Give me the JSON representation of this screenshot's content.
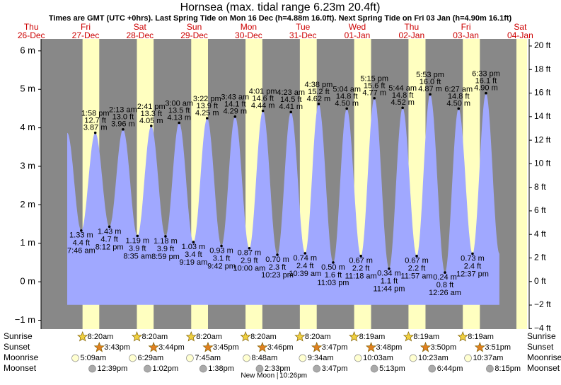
{
  "chart_data": {
    "type": "area",
    "title": "Hornsea (max. tidal range 6.23m 20.4ft)",
    "subtitle": "Times are GMT (UTC +0hrs). Last Spring Tide on Mon 16 Dec (h=4.88m 16.0ft). Next Spring Tide on Fri 03 Jan (h=4.90m 16.1ft)",
    "color": "#a0a8ff",
    "night_color": "#888888",
    "day_color": "#ffffc0",
    "ylim": [
      -1.23,
      6.31
    ],
    "yticks": [
      {
        "value": 6,
        "label": "6 m"
      },
      {
        "value": 5,
        "label": "5 m"
      },
      {
        "value": 4,
        "label": "4 m"
      },
      {
        "value": 3,
        "label": "3 m"
      },
      {
        "value": 2,
        "label": "2 m"
      },
      {
        "value": 1,
        "label": "1 m"
      },
      {
        "value": 0,
        "label": "0 m"
      },
      {
        "value": -1,
        "label": "−1 m"
      }
    ],
    "y2lim": [
      -4.04,
      20.6
    ],
    "y2ticks": [
      {
        "value": 20,
        "label": "20 ft"
      },
      {
        "value": 18,
        "label": "18 ft"
      },
      {
        "value": 16,
        "label": "16 ft"
      },
      {
        "value": 14,
        "label": "14 ft"
      },
      {
        "value": 12,
        "label": "12 ft"
      },
      {
        "value": 10,
        "label": "10 ft"
      },
      {
        "value": 8,
        "label": "8 ft"
      },
      {
        "value": 6,
        "label": "6 ft"
      },
      {
        "value": 4,
        "label": "4 ft"
      },
      {
        "value": 2,
        "label": "2 ft"
      },
      {
        "value": 0,
        "label": "0 ft"
      },
      {
        "value": -2,
        "label": "−2 ft"
      },
      {
        "value": -4,
        "label": "−4 ft"
      }
    ],
    "rows": [
      "Sunrise",
      "Sunset",
      "Moonrise",
      "Moonset"
    ],
    "days": [
      {
        "dow": "Thu",
        "date": "26-Dec"
      },
      {
        "dow": "Fri",
        "date": "27-Dec",
        "times": [
          "7:46 am",
          "1:58 pm",
          "8:12 pm"
        ],
        "values": [
          1.33,
          3.87,
          1.43
        ],
        "value_labels": [
          "1.33 m",
          "3.87 m",
          "1.43 m"
        ],
        "ft_labels": [
          "4.4 ft",
          "12.7 ft",
          "4.7 ft"
        ],
        "sunrise": "8:20am",
        "sunset": "3:43pm",
        "moonrise": "5:09am",
        "moonset": "12:39pm"
      },
      {
        "dow": "Sat",
        "date": "28-Dec",
        "times": [
          "2:13 am",
          "8:35 am",
          "2:41 pm",
          "8:59 pm"
        ],
        "values": [
          3.96,
          1.19,
          4.05,
          1.18
        ],
        "value_labels": [
          "3.96 m",
          "1.19 m",
          "4.05 m",
          "1.18 m"
        ],
        "ft_labels": [
          "13.0 ft",
          "3.9 ft",
          "13.3 ft",
          "3.9 ft"
        ],
        "sunrise": "8:20am",
        "sunset": "3:44pm",
        "moonrise": "6:29am",
        "moonset": "1:02pm"
      },
      {
        "dow": "Sun",
        "date": "29-Dec",
        "times": [
          "3:00 am",
          "9:19 am",
          "3:22 pm",
          "9:42 pm"
        ],
        "values": [
          4.13,
          1.03,
          4.25,
          0.93
        ],
        "value_labels": [
          "4.13 m",
          "1.03 m",
          "4.25 m",
          "0.93 m"
        ],
        "ft_labels": [
          "13.5 ft",
          "3.4 ft",
          "13.9 ft",
          "3.1 ft"
        ],
        "sunrise": "8:20am",
        "sunset": "3:45pm",
        "moonrise": "7:45am",
        "moonset": "1:38pm"
      },
      {
        "dow": "Mon",
        "date": "30-Dec",
        "times": [
          "3:43 am",
          "10:00 am",
          "4:01 pm",
          "10:23 pm"
        ],
        "values": [
          4.29,
          0.87,
          4.44,
          0.7
        ],
        "value_labels": [
          "4.29 m",
          "0.87 m",
          "4.44 m",
          "0.70 m"
        ],
        "ft_labels": [
          "14.1 ft",
          "2.9 ft",
          "14.6 ft",
          "2.3 ft"
        ],
        "sunrise": "8:20am",
        "sunset": "3:46pm",
        "moonrise": "8:48am",
        "moonset": "2:33pm",
        "moon_phase": "New Moon",
        "moon_phase_time": "10:26pm"
      },
      {
        "dow": "Tue",
        "date": "31-Dec",
        "times": [
          "4:23 am",
          "10:39 am",
          "4:38 pm",
          "11:03 pm"
        ],
        "values": [
          4.41,
          0.74,
          4.62,
          0.5
        ],
        "value_labels": [
          "4.41 m",
          "0.74 m",
          "4.62 m",
          "0.50 m"
        ],
        "ft_labels": [
          "14.5 ft",
          "2.4 ft",
          "15.2 ft",
          "1.6 ft"
        ],
        "sunrise": "8:20am",
        "sunset": "3:47pm",
        "moonrise": "9:34am",
        "moonset": "3:47pm"
      },
      {
        "dow": "Wed",
        "date": "01-Jan",
        "times": [
          "5:04 am",
          "11:18 am",
          "5:15 pm",
          "11:44 pm"
        ],
        "values": [
          4.5,
          0.67,
          4.77,
          0.34
        ],
        "value_labels": [
          "4.50 m",
          "0.67 m",
          "4.77 m",
          "0.34 m"
        ],
        "ft_labels": [
          "14.8 ft",
          "2.2 ft",
          "15.6 ft",
          "1.1 ft"
        ],
        "sunrise": "8:19am",
        "sunset": "3:48pm",
        "moonrise": "10:03am",
        "moonset": "5:13pm"
      },
      {
        "dow": "Thu",
        "date": "02-Jan",
        "times": [
          "5:44 am",
          "11:57 am",
          "5:53 pm"
        ],
        "values": [
          4.52,
          0.67,
          4.87
        ],
        "value_labels": [
          "4.52 m",
          "0.67 m",
          "4.87 m"
        ],
        "ft_labels": [
          "14.8 ft",
          "2.2 ft",
          "16.0 ft"
        ],
        "sunrise": "8:19am",
        "sunset": "3:50pm",
        "moonrise": "10:23am",
        "moonset": "6:44pm"
      },
      {
        "dow": "Fri",
        "date": "03-Jan",
        "times": [
          "12:26 am",
          "6:27 am",
          "12:37 pm",
          "6:33 pm"
        ],
        "values": [
          0.24,
          4.5,
          0.73,
          4.9
        ],
        "value_labels": [
          "0.24 m",
          "4.50 m",
          "0.73 m",
          "4.90 m"
        ],
        "ft_labels": [
          "0.8 ft",
          "14.8 ft",
          "2.4 ft",
          "16.1 ft"
        ],
        "sunrise": "8:19am",
        "sunset": "3:51pm",
        "moonrise": "10:37am",
        "moonset": "8:15pm"
      },
      {
        "dow": "Sat",
        "date": "04-Jan"
      }
    ]
  }
}
